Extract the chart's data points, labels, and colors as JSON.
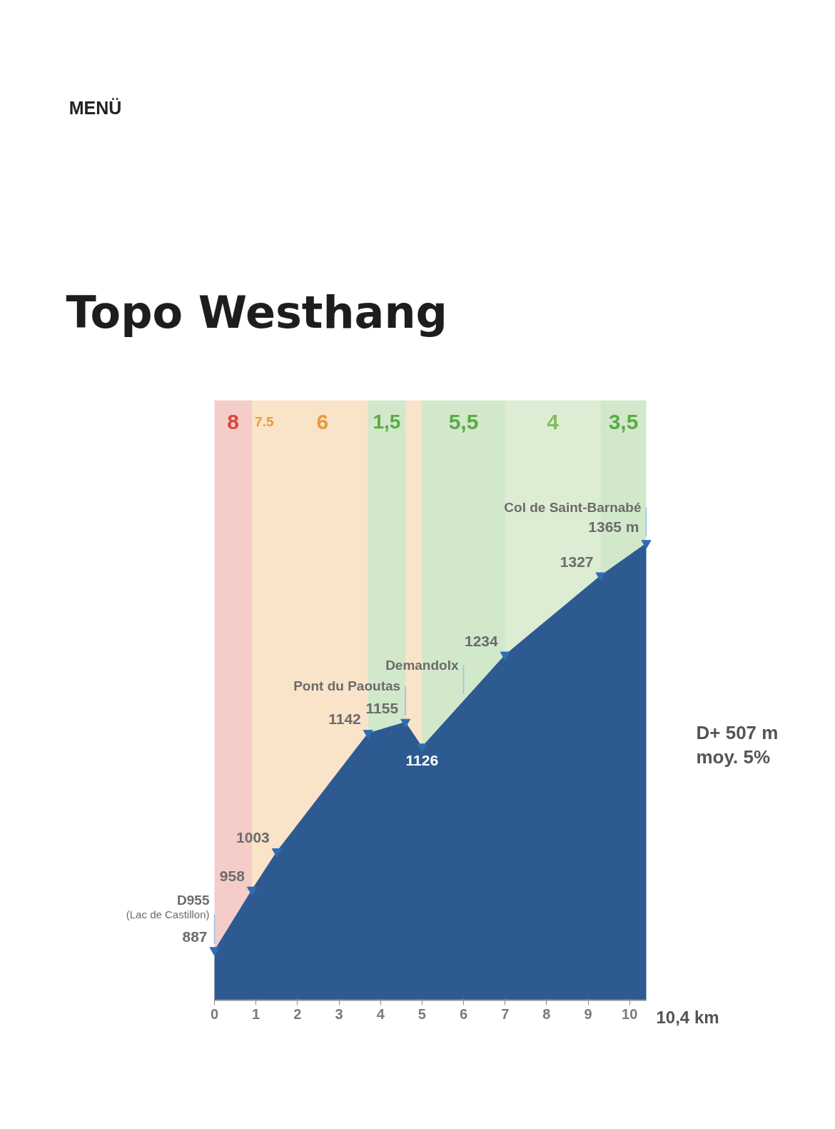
{
  "chart_data": {
    "type": "area",
    "title": "Topo Westhang",
    "xlabel": "10,4 km",
    "x": [
      0,
      0.9,
      1.5,
      3.7,
      4.6,
      5.0,
      7.0,
      9.3,
      10.4
    ],
    "values": [
      887,
      958,
      1003,
      1142,
      1155,
      1126,
      1234,
      1327,
      1365
    ],
    "color": "#2d5b91",
    "value_labels": [
      "887",
      "958",
      "1003",
      "1142",
      "1155",
      "1126",
      "1234",
      "1327",
      "1365 m"
    ],
    "marker": "triangle",
    "xlim": [
      0,
      10.4
    ],
    "xticks": [
      0,
      1,
      2,
      3,
      4,
      5,
      6,
      7,
      8,
      9,
      10
    ],
    "tick_labels": "x",
    "bands": [
      {
        "axis": "x",
        "from": 0,
        "to": 0.9,
        "label": "8",
        "color": "#d9473a"
      },
      {
        "axis": "x",
        "from": 0.9,
        "to": 1.5,
        "label": "7.5",
        "color": "#e99a3c"
      },
      {
        "axis": "x",
        "from": 1.5,
        "to": 3.7,
        "label": "6",
        "color": "#e99a3c"
      },
      {
        "axis": "x",
        "from": 3.7,
        "to": 4.6,
        "label": "1,5",
        "color": "#5aab46"
      },
      {
        "axis": "x",
        "from": 4.6,
        "to": 5.0,
        "label": null,
        "color": "#e99a3c"
      },
      {
        "axis": "x",
        "from": 5.0,
        "to": 7.0,
        "label": "5,5",
        "color": "#5aab46"
      },
      {
        "axis": "x",
        "from": 7.0,
        "to": 9.3,
        "label": "4",
        "color": "#80bd62"
      },
      {
        "axis": "x",
        "from": 9.3,
        "to": 10.4,
        "label": "3,5",
        "color": "#5aab46"
      }
    ],
    "annotations": [
      "MENÜ",
      {
        "text": "D955\n(Lac de Castillon)",
        "x": 0,
        "y": 887
      },
      {
        "text": "Pont du Paoutas",
        "x": 4.6,
        "y": 1155
      },
      {
        "text": "Demandolx",
        "x": 6.0,
        "y": 1180
      },
      {
        "text": "Col de Saint-Barnabé",
        "x": 10.4,
        "y": 1365
      },
      "D+ 507 m",
      "moy. 5%"
    ]
  }
}
